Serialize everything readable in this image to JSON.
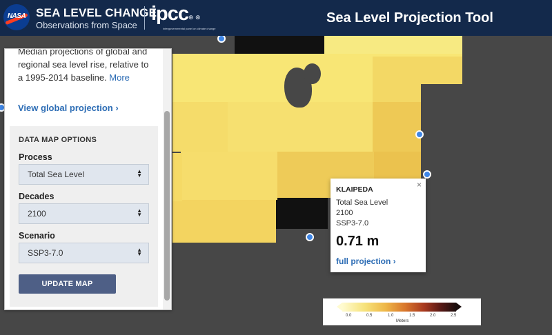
{
  "header": {
    "brand_title": "SEA LEVEL CHANGE",
    "brand_subtitle": "Observations from Space",
    "nasa_logo_text": "NASA",
    "ipcc_logo_text": "ipcc",
    "ipcc_sub_text": "intergovernmental panel on climate change",
    "tool_title": "Sea Level Projection Tool"
  },
  "sidebar": {
    "intro_text": "Median projections of global and regional sea level rise, relative to a 1995-2014 baseline.",
    "more_link": "More",
    "view_global_link": "View global projection ›",
    "options": {
      "title": "DATA MAP OPTIONS",
      "process_label": "Process",
      "process_value": "Total Sea Level",
      "decades_label": "Decades",
      "decades_value": "2100",
      "scenario_label": "Scenario",
      "scenario_value": "SSP3-7.0",
      "update_button": "UPDATE MAP"
    }
  },
  "popup": {
    "location": "KLAIPEDA",
    "process": "Total Sea Level",
    "decade": "2100",
    "scenario": "SSP3-7.0",
    "value": "0.71 m",
    "full_projection_link": "full projection ›",
    "close_glyph": "×"
  },
  "legend": {
    "ticks": [
      "0.0",
      "0.5",
      "1.0",
      "1.5",
      "2.0",
      "2.5"
    ],
    "unit": "Meters"
  },
  "colors": {
    "header_bg": "#13294b",
    "land": "#474747",
    "link": "#2d6db5",
    "button": "#4e5f86",
    "marker": "#3f86e6"
  }
}
